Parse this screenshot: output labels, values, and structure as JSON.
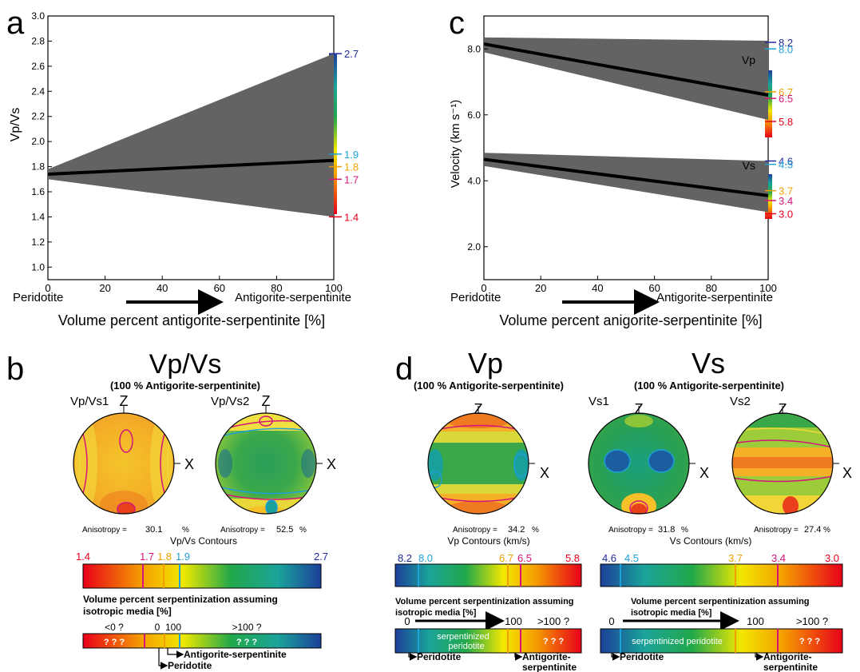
{
  "panel_letters": {
    "a": "a",
    "b": "b",
    "c": "c",
    "d": "d"
  },
  "colors": {
    "red": "#e8001a",
    "orange": "#f5a000",
    "yellow": "#f2e800",
    "green": "#22a84a",
    "teal": "#1aa39a",
    "blue": "#1c3f9a",
    "magenta": "#d4147a",
    "cyan": "#1ea0d8",
    "gold": "#f0a000",
    "band": "#636363"
  },
  "chart_data": [
    {
      "id": "a",
      "type": "area",
      "xlabel": "Volume percent antigorite-serpentinite [%]",
      "ylabel": "Vp/Vs",
      "xlim": [
        0,
        100
      ],
      "ylim": [
        0.9,
        3.0
      ],
      "xticks": [
        "0",
        "20",
        "40",
        "60",
        "80",
        "100"
      ],
      "yticks": [
        "1.0",
        "1.2",
        "1.4",
        "1.6",
        "1.8",
        "2.0",
        "2.2",
        "2.4",
        "2.6",
        "2.8",
        "3.0"
      ],
      "end_labels": [
        "Peridotite",
        "Antigorite-serpentinite"
      ],
      "band": {
        "x": [
          0,
          100
        ],
        "upper": [
          1.78,
          2.7
        ],
        "lower": [
          1.7,
          1.4
        ]
      },
      "line": {
        "x": [
          0,
          100
        ],
        "y": [
          1.74,
          1.85
        ]
      },
      "colorbar_labels": [
        {
          "text": "2.7",
          "value": 2.7,
          "color": "#1f2a9a"
        },
        {
          "text": "1.9",
          "value": 1.9,
          "color": "#1ea0d8"
        },
        {
          "text": "1.8",
          "value": 1.8,
          "color": "#f0a000"
        },
        {
          "text": "1.7",
          "value": 1.7,
          "color": "#d4147a"
        },
        {
          "text": "1.4",
          "value": 1.4,
          "color": "#e8001a"
        }
      ]
    },
    {
      "id": "c",
      "type": "area",
      "xlabel": "Volume percent anigorite-serpentinite [%]",
      "ylabel": "Velocity (km s⁻¹)",
      "xlim": [
        0,
        100
      ],
      "ylim": [
        1.0,
        9.0
      ],
      "xticks": [
        "0",
        "20",
        "40",
        "60",
        "80",
        "100"
      ],
      "yticks": [
        "2.0",
        "4.0",
        "6.0",
        "8.0"
      ],
      "end_labels": [
        "Peridotite",
        "Antigorite-serpentinite"
      ],
      "series": [
        {
          "name": "Vp",
          "band_upper": [
            8.35,
            8.25
          ],
          "band_lower": [
            7.9,
            5.85
          ],
          "line": [
            8.15,
            6.6
          ],
          "colorbar_labels": [
            {
              "text": "8.2",
              "value": 8.2,
              "color": "#1f2a9a"
            },
            {
              "text": "8.0",
              "value": 8.0,
              "color": "#1ea0d8"
            },
            {
              "text": "6.7",
              "value": 6.7,
              "color": "#f0a000"
            },
            {
              "text": "6.5",
              "value": 6.5,
              "color": "#d4147a"
            },
            {
              "text": "5.8",
              "value": 5.8,
              "color": "#e8001a"
            }
          ]
        },
        {
          "name": "Vs",
          "band_upper": [
            4.85,
            4.6
          ],
          "band_lower": [
            4.45,
            3.05
          ],
          "line": [
            4.65,
            3.55
          ],
          "colorbar_labels": [
            {
              "text": "4.6",
              "value": 4.6,
              "color": "#1f2a9a"
            },
            {
              "text": "4.5",
              "value": 4.5,
              "color": "#1ea0d8"
            },
            {
              "text": "3.7",
              "value": 3.7,
              "color": "#f0a000"
            },
            {
              "text": "3.4",
              "value": 3.4,
              "color": "#d4147a"
            },
            {
              "text": "3.0",
              "value": 3.0,
              "color": "#e8001a"
            }
          ]
        }
      ]
    }
  ],
  "panel_b": {
    "title": "Vp/Vs",
    "subtitle": "(100 % Antigorite-serpentinite)",
    "plots": [
      {
        "name": "Vp/Vs1",
        "z": "Z",
        "x": "X",
        "anisotropy_label": "Anisotropy =",
        "anisotropy_value": "30.1",
        "unit": "%"
      },
      {
        "name": "Vp/Vs2",
        "z": "Z",
        "x": "X",
        "anisotropy_label": "Anisotropy =",
        "anisotropy_value": "52.5",
        "unit": "%"
      }
    ],
    "contours_title": "Vp/Vs Contours",
    "scale_labels": [
      {
        "text": "1.4",
        "color": "#e8001a"
      },
      {
        "text": "1.7",
        "color": "#d4147a"
      },
      {
        "text": "1.8",
        "color": "#f0a000"
      },
      {
        "text": "1.9",
        "color": "#1ea0d8"
      },
      {
        "text": "2.7",
        "color": "#1f2a9a"
      }
    ],
    "serp_title_1": "Volume percent serpentinization assuming",
    "serp_title_2": "isotropic media [%]",
    "serp_labels": {
      "lt0": "<0 ?",
      "zero": "0",
      "hundred": "100",
      "gt100": ">100 ?",
      "q1": "? ? ?",
      "q2": "? ? ?"
    },
    "peridotite": "Peridotite",
    "antigorite": "Antigorite-serpentinite"
  },
  "panel_d": {
    "vp_title": "Vp",
    "vs_title": "Vs",
    "subtitle": "(100 % Antigorite-serpentinite)",
    "plots": [
      {
        "name": "",
        "z": "Z",
        "x": "X",
        "anisotropy_label": "Anisotropy =",
        "anisotropy_value": "34.2",
        "unit": "%"
      },
      {
        "name": "Vs1",
        "z": "Z",
        "x": "X",
        "anisotropy_label": "Anisotropy =",
        "anisotropy_value": "31.8",
        "unit": "%"
      },
      {
        "name": "Vs2",
        "z": "Z",
        "x": "X",
        "anisotropy_label": "Anisotropy =",
        "anisotropy_value": "27.4",
        "unit": "%"
      }
    ],
    "vp_contours_title": "Vp  Contours (km/s)",
    "vs_contours_title": "Vs Contours (km/s)",
    "vp_scale_labels": [
      {
        "text": "8.2",
        "color": "#1f2a9a"
      },
      {
        "text": "8.0",
        "color": "#1ea0d8"
      },
      {
        "text": "6.7",
        "color": "#f0a000"
      },
      {
        "text": "6.5",
        "color": "#d4147a"
      },
      {
        "text": "5.8",
        "color": "#e8001a"
      }
    ],
    "vs_scale_labels": [
      {
        "text": "4.6",
        "color": "#1f2a9a"
      },
      {
        "text": "4.5",
        "color": "#1ea0d8"
      },
      {
        "text": "3.7",
        "color": "#f0a000"
      },
      {
        "text": "3.4",
        "color": "#d4147a"
      },
      {
        "text": "3.0",
        "color": "#e8001a"
      }
    ],
    "serp_title_1": "Volume percent serpentinization assuming",
    "serp_title_2": "isotropic media [%]",
    "serp_labels": {
      "zero": "0",
      "hundred": "100",
      "gt100": ">100 ?",
      "q": "? ? ?"
    },
    "vp_band_text": [
      "serpentinized",
      "peridotite"
    ],
    "vs_band_text": "serpentinized peridotite",
    "peridotite": "Peridotite",
    "antigorite_1": "Antigorite-",
    "antigorite_2": "serpentinite"
  }
}
